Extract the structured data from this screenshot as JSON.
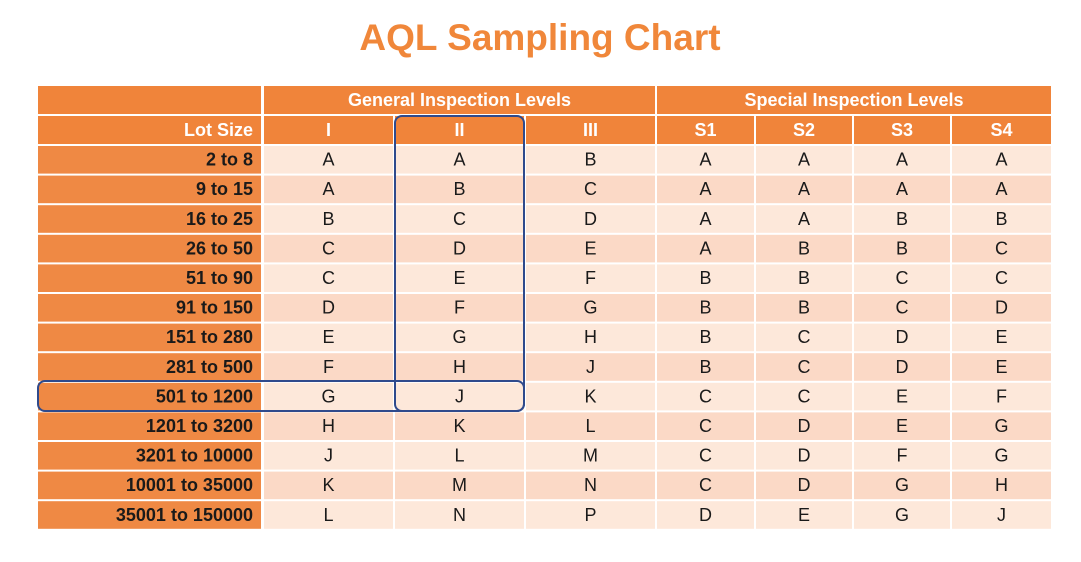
{
  "title": "AQL Sampling Chart",
  "table": {
    "header_groups": [
      "General Inspection Levels",
      "Special Inspection Levels"
    ],
    "columns": [
      "Lot Size",
      "I",
      "II",
      "III",
      "S1",
      "S2",
      "S3",
      "S4"
    ],
    "rows": [
      [
        "2 to 8",
        "A",
        "A",
        "B",
        "A",
        "A",
        "A",
        "A"
      ],
      [
        "9 to 15",
        "A",
        "B",
        "C",
        "A",
        "A",
        "A",
        "A"
      ],
      [
        "16 to 25",
        "B",
        "C",
        "D",
        "A",
        "A",
        "B",
        "B"
      ],
      [
        "26 to 50",
        "C",
        "D",
        "E",
        "A",
        "B",
        "B",
        "C"
      ],
      [
        "51 to 90",
        "C",
        "E",
        "F",
        "B",
        "B",
        "C",
        "C"
      ],
      [
        "91 to 150",
        "D",
        "F",
        "G",
        "B",
        "B",
        "C",
        "D"
      ],
      [
        "151 to 280",
        "E",
        "G",
        "H",
        "B",
        "C",
        "D",
        "E"
      ],
      [
        "281 to 500",
        "F",
        "H",
        "J",
        "B",
        "C",
        "D",
        "E"
      ],
      [
        "501 to 1200",
        "G",
        "J",
        "K",
        "C",
        "C",
        "E",
        "F"
      ],
      [
        "1201 to 3200",
        "H",
        "K",
        "L",
        "C",
        "D",
        "E",
        "G"
      ],
      [
        "3201 to 10000",
        "J",
        "L",
        "M",
        "C",
        "D",
        "F",
        "G"
      ],
      [
        "10001 to 35000",
        "K",
        "M",
        "N",
        "C",
        "D",
        "G",
        "H"
      ],
      [
        "35001 to 150000",
        "L",
        "N",
        "P",
        "D",
        "E",
        "G",
        "J"
      ]
    ]
  }
}
